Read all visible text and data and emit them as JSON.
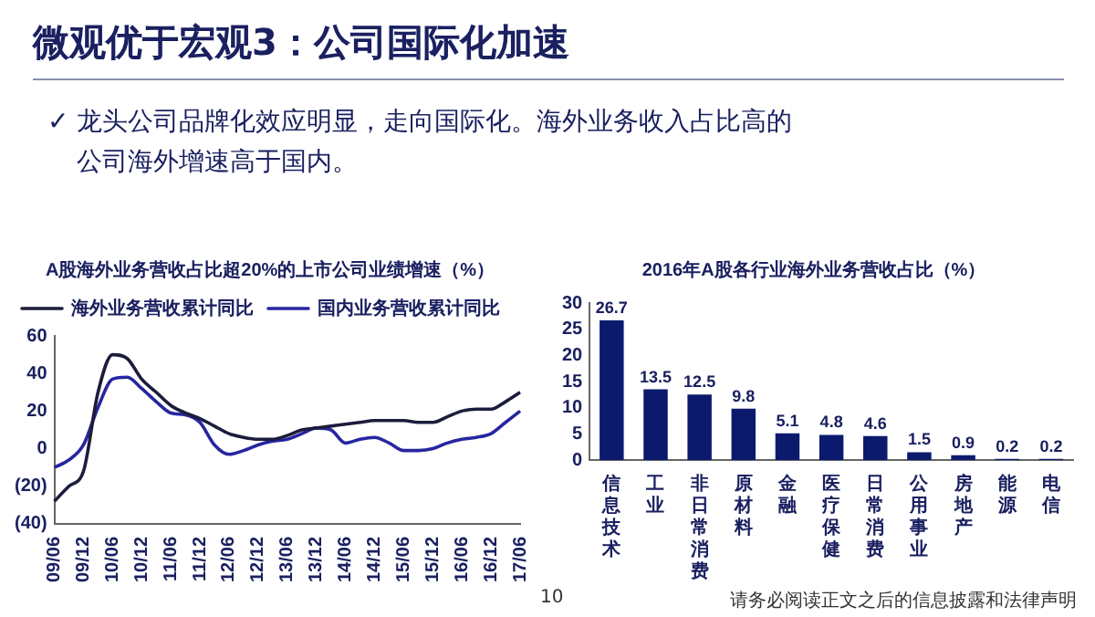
{
  "chart_data": [
    {
      "type": "line",
      "title": "A股海外业务营收占比超20%的上市公司业绩增速（%）",
      "annotations": [
        "微观优于宏观3：公司国际化加速",
        "✓ 龙头公司品牌化效应明显，走向国际化。海外业务收入占比高的公司海外增速高于国内。"
      ],
      "categories": [
        "09/06",
        null,
        "09/12",
        null,
        "10/06",
        null,
        "10/12",
        null,
        "11/06",
        null,
        "11/12",
        null,
        "12/06",
        null,
        "12/12",
        null,
        "13/06",
        null,
        "13/12",
        null,
        "14/06",
        null,
        "14/12",
        null,
        "15/06",
        null,
        "15/12",
        null,
        "16/06",
        null,
        "16/12",
        null,
        "17/06"
      ],
      "series": [
        {
          "name": "海外业务营收累计同比",
          "color": "#1c1c3c",
          "values": [
            -28,
            -20,
            -12,
            30,
            50,
            48,
            37,
            30,
            23,
            19,
            16,
            12,
            8,
            6,
            5,
            5,
            7,
            10,
            11,
            12,
            13,
            14,
            15,
            15,
            15,
            14,
            14,
            17,
            20,
            21,
            21,
            25,
            30
          ]
        },
        {
          "name": "国内业务营收累计同比",
          "color": "#2626a0",
          "values": [
            -10,
            -6,
            2,
            22,
            37,
            38,
            32,
            25,
            19,
            18,
            14,
            2,
            -3,
            -1,
            2,
            4,
            5,
            8,
            11,
            10,
            3,
            5,
            6,
            3,
            -1,
            -1,
            0,
            3,
            5,
            6,
            8,
            14,
            20
          ]
        }
      ],
      "ylim": [
        -40,
        60
      ],
      "yticks": [
        {
          "value": -40,
          "label": "(40)"
        },
        {
          "value": -20,
          "label": "(20)"
        },
        0,
        20,
        40,
        60
      ],
      "grid": false,
      "legend": "top",
      "line_style": "solid",
      "marker": "none"
    },
    {
      "type": "bar",
      "title": "2016年A股各行业海外业务营收占比（%）",
      "annotations": [
        "10",
        "请务必阅读正文之后的信息披露和法律声明"
      ],
      "categories": [
        "信息技术",
        "工业",
        "非日常消费",
        "原材料",
        "金融",
        "医疗保健",
        "日常消费",
        "公用事业",
        "房地产",
        "能源",
        "电信"
      ],
      "values": [
        26.7,
        13.5,
        12.5,
        9.8,
        5.1,
        4.8,
        4.6,
        1.5,
        0.9,
        0.2,
        0.2
      ],
      "color": "#0c1a6e",
      "ylim": [
        0,
        30
      ],
      "yticks": [
        0,
        5,
        10,
        15,
        20,
        25,
        30
      ],
      "grid": false,
      "legend": false,
      "data_labels": true
    }
  ]
}
